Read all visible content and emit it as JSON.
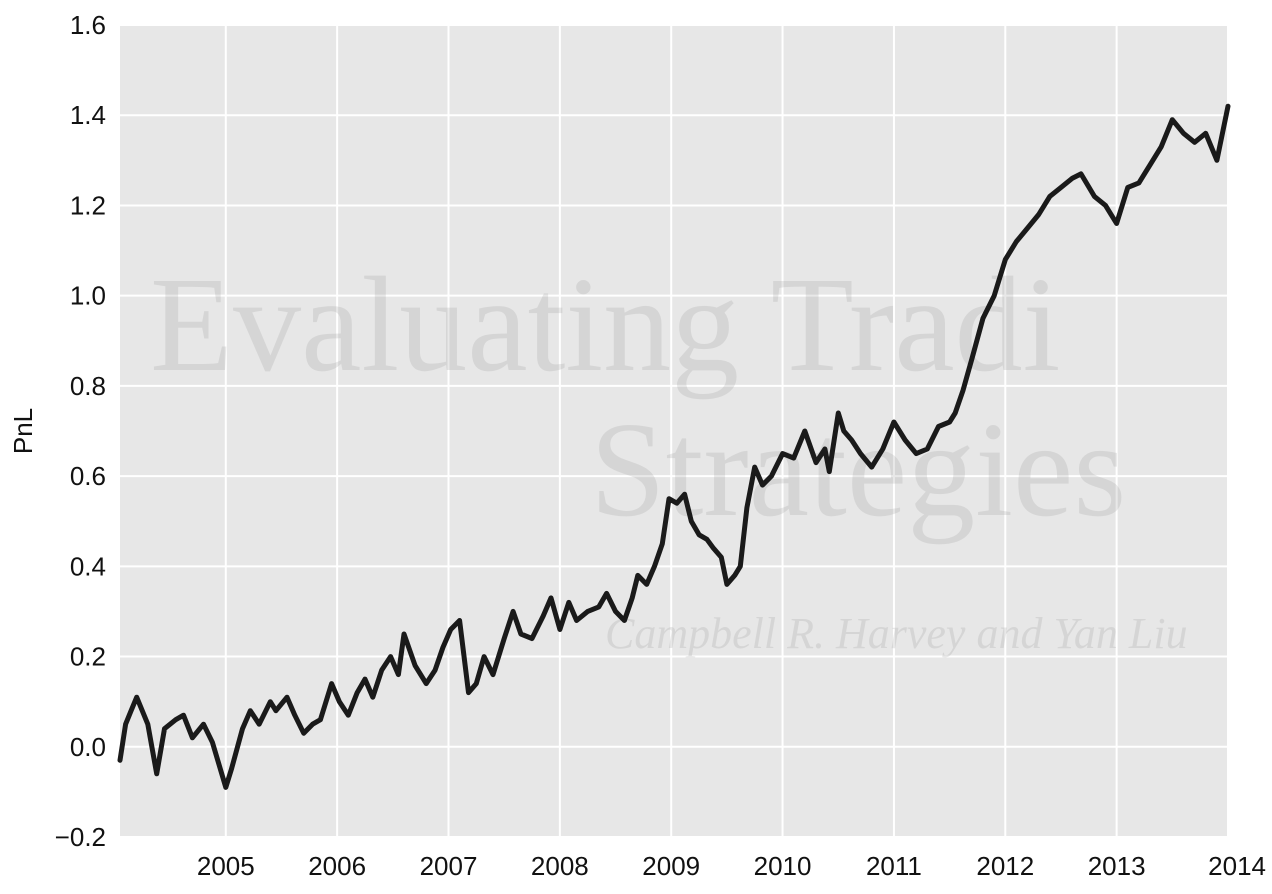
{
  "chart_data": {
    "type": "line",
    "title": "",
    "xlabel": "",
    "ylabel": "PnL",
    "xlim": [
      2004.05,
      2014.0
    ],
    "ylim": [
      -0.2,
      1.6
    ],
    "grid": true,
    "legend": "none",
    "x_ticks": [
      2005,
      2006,
      2007,
      2008,
      2009,
      2010,
      2011,
      2012,
      2013,
      2014
    ],
    "x_tick_labels": [
      "2005",
      "2006",
      "2007",
      "2008",
      "2009",
      "2010",
      "2011",
      "2012",
      "2013",
      "2014"
    ],
    "y_ticks": [
      -0.2,
      0.0,
      0.2,
      0.4,
      0.6,
      0.8,
      1.0,
      1.2,
      1.4,
      1.6
    ],
    "y_tick_labels": [
      "−0.2",
      "0.0",
      "0.2",
      "0.4",
      "0.6",
      "0.8",
      "1.0",
      "1.2",
      "1.4",
      "1.6"
    ],
    "colors": {
      "line": "#1a1a1a",
      "plot_background": "#e7e7e7",
      "grid": "#ffffff"
    },
    "watermark": {
      "lines": [
        "Evaluating Tradi",
        "Strategies",
        "Campbell R. Harvey and Yan Liu"
      ]
    },
    "series": [
      {
        "x": [
          2004.05,
          2004.1,
          2004.15,
          2004.2,
          2004.3,
          2004.38,
          2004.45,
          2004.55,
          2004.62,
          2004.7,
          2004.8,
          2004.88,
          2005.0,
          2005.05,
          2005.15,
          2005.22,
          2005.3,
          2005.4,
          2005.45,
          2005.55,
          2005.62,
          2005.7,
          2005.78,
          2005.85,
          2005.95,
          2006.02,
          2006.1,
          2006.18,
          2006.25,
          2006.32,
          2006.4,
          2006.48,
          2006.55,
          2006.6,
          2006.7,
          2006.8,
          2006.88,
          2006.95,
          2007.02,
          2007.1,
          2007.18,
          2007.25,
          2007.32,
          2007.4,
          2007.5,
          2007.58,
          2007.65,
          2007.75,
          2007.85,
          2007.92,
          2008.0,
          2008.08,
          2008.15,
          2008.25,
          2008.35,
          2008.42,
          2008.5,
          2008.58,
          2008.65,
          2008.7,
          2008.78,
          2008.85,
          2008.92,
          2008.98,
          2009.05,
          2009.12,
          2009.18,
          2009.25,
          2009.32,
          2009.38,
          2009.45,
          2009.5,
          2009.57,
          2009.62,
          2009.68,
          2009.75,
          2009.82,
          2009.9,
          2010.0,
          2010.1,
          2010.2,
          2010.3,
          2010.38,
          2010.42,
          2010.5,
          2010.55,
          2010.62,
          2010.7,
          2010.8,
          2010.9,
          2011.0,
          2011.1,
          2011.2,
          2011.3,
          2011.4,
          2011.5,
          2011.55,
          2011.62,
          2011.7,
          2011.8,
          2011.9,
          2012.0,
          2012.1,
          2012.2,
          2012.3,
          2012.4,
          2012.5,
          2012.6,
          2012.68,
          2012.8,
          2012.9,
          2013.0,
          2013.1,
          2013.2,
          2013.3,
          2013.4,
          2013.5,
          2013.6,
          2013.7,
          2013.8,
          2013.9,
          2014.0
        ],
        "y": [
          -0.03,
          0.05,
          0.08,
          0.11,
          0.05,
          -0.06,
          0.04,
          0.06,
          0.07,
          0.02,
          0.05,
          0.01,
          -0.09,
          -0.05,
          0.04,
          0.08,
          0.05,
          0.1,
          0.08,
          0.11,
          0.07,
          0.03,
          0.05,
          0.06,
          0.14,
          0.1,
          0.07,
          0.12,
          0.15,
          0.11,
          0.17,
          0.2,
          0.16,
          0.25,
          0.18,
          0.14,
          0.17,
          0.22,
          0.26,
          0.28,
          0.12,
          0.14,
          0.2,
          0.16,
          0.24,
          0.3,
          0.25,
          0.24,
          0.29,
          0.33,
          0.26,
          0.32,
          0.28,
          0.3,
          0.31,
          0.34,
          0.3,
          0.28,
          0.33,
          0.38,
          0.36,
          0.4,
          0.45,
          0.55,
          0.54,
          0.56,
          0.5,
          0.47,
          0.46,
          0.44,
          0.42,
          0.36,
          0.38,
          0.4,
          0.53,
          0.62,
          0.58,
          0.6,
          0.65,
          0.64,
          0.7,
          0.63,
          0.66,
          0.61,
          0.74,
          0.7,
          0.68,
          0.65,
          0.62,
          0.66,
          0.72,
          0.68,
          0.65,
          0.66,
          0.71,
          0.72,
          0.74,
          0.79,
          0.86,
          0.95,
          1.0,
          1.08,
          1.12,
          1.15,
          1.18,
          1.22,
          1.24,
          1.26,
          1.27,
          1.22,
          1.2,
          1.16,
          1.24,
          1.25,
          1.29,
          1.33,
          1.39,
          1.36,
          1.34,
          1.36,
          1.3,
          1.42
        ]
      }
    ]
  }
}
